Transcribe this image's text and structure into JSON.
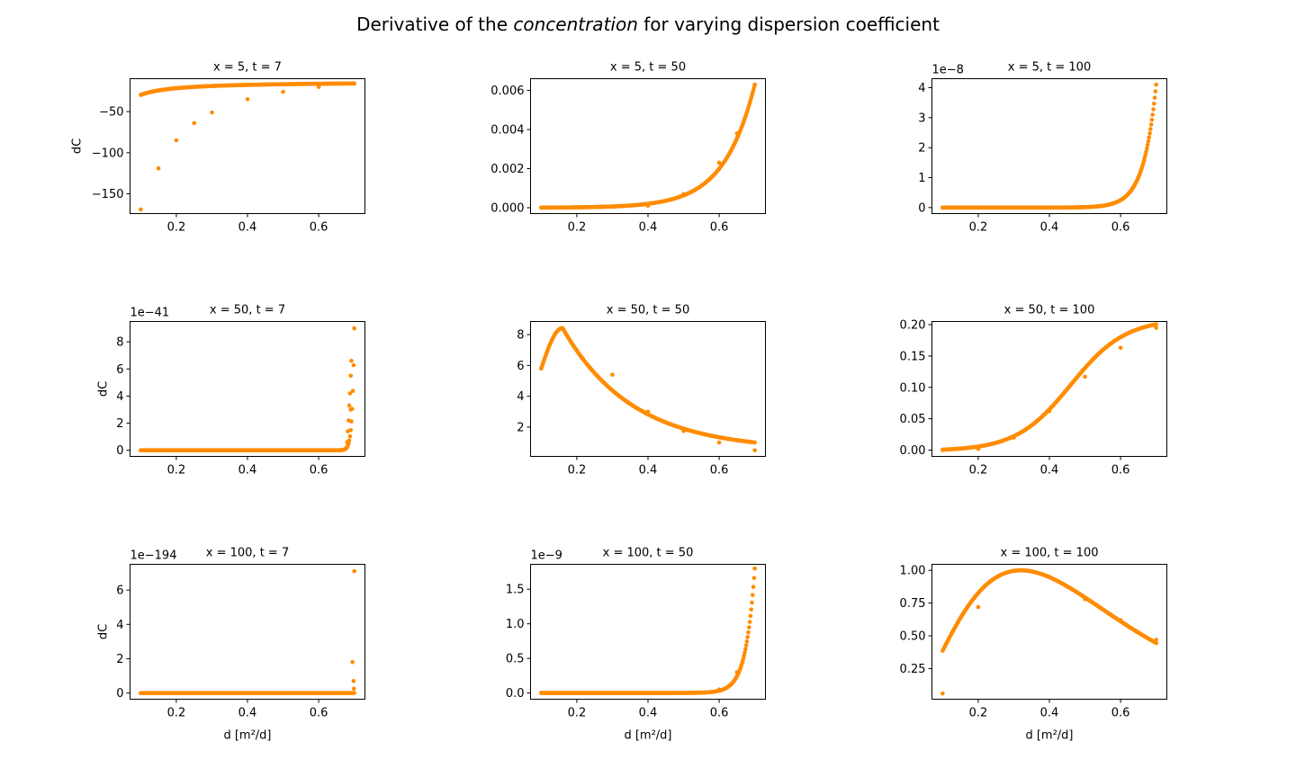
{
  "figure": {
    "title_prefix": "Derivative of the ",
    "title_italic": "concentration",
    "title_suffix": " for varying dispersion coefficient",
    "point_color": "#ff8c00"
  },
  "chart_data": [
    {
      "type": "scatter",
      "title": "x = 5, t = 7",
      "xlabel": "",
      "ylabel": "dC",
      "ylim": [
        -174,
        -10
      ],
      "xlim": [
        0.07,
        0.73
      ],
      "xticks": [
        0.2,
        0.4,
        0.6
      ],
      "yticks": [
        -150,
        -100,
        -50
      ],
      "ytick_labels": [
        "−150",
        "−100",
        "−50"
      ],
      "offset_text": "",
      "curve": "x=5,t=7",
      "series": [
        {
          "x": [
            0.1,
            0.15,
            0.2,
            0.25,
            0.3,
            0.4,
            0.5,
            0.6,
            0.7
          ],
          "y": [
            -169,
            -119,
            -85,
            -64,
            -51,
            -35,
            -26,
            -20,
            -16
          ]
        }
      ]
    },
    {
      "type": "scatter",
      "title": "x = 5, t = 50",
      "xlabel": "",
      "ylabel": "",
      "ylim": [
        -0.0003,
        0.0066
      ],
      "xlim": [
        0.07,
        0.73
      ],
      "xticks": [
        0.2,
        0.4,
        0.6
      ],
      "yticks": [
        0,
        0.002,
        0.004,
        0.006
      ],
      "ytick_labels": [
        "0.000",
        "0.002",
        "0.004",
        "0.006"
      ],
      "offset_text": "",
      "curve": "x=5,t=50",
      "series": [
        {
          "x": [
            0.1,
            0.4,
            0.5,
            0.6,
            0.65,
            0.7
          ],
          "y": [
            0,
            0.0001,
            0.0007,
            0.0023,
            0.0038,
            0.0063
          ]
        }
      ]
    },
    {
      "type": "scatter",
      "title": "x = 5, t = 100",
      "xlabel": "",
      "ylabel": "",
      "ylim": [
        -0.2,
        4.3
      ],
      "xlim": [
        0.07,
        0.73
      ],
      "xticks": [
        0.2,
        0.4,
        0.6
      ],
      "yticks": [
        0,
        1,
        2,
        3,
        4
      ],
      "ytick_labels": [
        "0",
        "1",
        "2",
        "3",
        "4"
      ],
      "offset_text": "1e−8",
      "curve": "x=5,t=100",
      "series": [
        {
          "x": [
            0.1,
            0.5,
            0.6,
            0.65,
            0.7
          ],
          "y": [
            0,
            0.01,
            0.25,
            1.0,
            4.1
          ]
        }
      ]
    },
    {
      "type": "scatter",
      "title": "x = 50, t = 7",
      "xlabel": "",
      "ylabel": "dC",
      "ylim": [
        -0.45,
        9.5
      ],
      "xlim": [
        0.07,
        0.73
      ],
      "xticks": [
        0.2,
        0.4,
        0.6
      ],
      "yticks": [
        0,
        2,
        4,
        6,
        8
      ],
      "ytick_labels": [
        "0",
        "2",
        "4",
        "6",
        "8"
      ],
      "offset_text": "1e−41",
      "curve": "x=50,t=7",
      "series": [
        {
          "x": [
            0.1,
            0.65,
            0.68,
            0.69,
            0.7
          ],
          "y": [
            0,
            0,
            0.6,
            3.0,
            9.0
          ]
        }
      ]
    },
    {
      "type": "scatter",
      "title": "x = 50, t = 50",
      "xlabel": "",
      "ylabel": "",
      "ylim": [
        0.1,
        8.85
      ],
      "xlim": [
        0.07,
        0.73
      ],
      "xticks": [
        0.2,
        0.4,
        0.6
      ],
      "yticks": [
        2,
        4,
        6,
        8
      ],
      "ytick_labels": [
        "2",
        "4",
        "6",
        "8"
      ],
      "offset_text": "",
      "curve": "x=50,t=50",
      "series": [
        {
          "x": [
            0.1,
            0.16,
            0.3,
            0.4,
            0.5,
            0.6,
            0.7
          ],
          "y": [
            5.8,
            8.4,
            5.4,
            3.0,
            1.75,
            1.0,
            0.5
          ]
        }
      ]
    },
    {
      "type": "scatter",
      "title": "x = 50, t = 100",
      "xlabel": "",
      "ylabel": "",
      "ylim": [
        -0.01,
        0.205
      ],
      "xlim": [
        0.07,
        0.73
      ],
      "xticks": [
        0.2,
        0.4,
        0.6
      ],
      "yticks": [
        0,
        0.05,
        0.1,
        0.15,
        0.2
      ],
      "ytick_labels": [
        "0.00",
        "0.05",
        "0.10",
        "0.15",
        "0.20"
      ],
      "offset_text": "",
      "curve": "x=50,t=100",
      "series": [
        {
          "x": [
            0.1,
            0.2,
            0.3,
            0.4,
            0.5,
            0.6,
            0.7
          ],
          "y": [
            0,
            0.002,
            0.02,
            0.062,
            0.117,
            0.163,
            0.195
          ]
        }
      ]
    },
    {
      "type": "scatter",
      "title": "x = 100, t = 7",
      "xlabel": "d [m²/d]",
      "ylabel": "dC",
      "ylim": [
        -0.36,
        7.5
      ],
      "xlim": [
        0.07,
        0.73
      ],
      "xticks": [
        0.2,
        0.4,
        0.6
      ],
      "yticks": [
        0,
        2,
        4,
        6
      ],
      "ytick_labels": [
        "0",
        "2",
        "4",
        "6"
      ],
      "offset_text": "1e−194",
      "curve": "x=100,t=7",
      "series": [
        {
          "x": [
            0.1,
            0.69,
            0.695,
            0.7
          ],
          "y": [
            0,
            0,
            1.8,
            7.1
          ]
        }
      ]
    },
    {
      "type": "scatter",
      "title": "x = 100, t = 50",
      "xlabel": "d [m²/d]",
      "ylabel": "",
      "ylim": [
        -0.09,
        1.86
      ],
      "xlim": [
        0.07,
        0.73
      ],
      "xticks": [
        0.2,
        0.4,
        0.6
      ],
      "yticks": [
        0,
        0.5,
        1.0,
        1.5
      ],
      "ytick_labels": [
        "0.0",
        "0.5",
        "1.0",
        "1.5"
      ],
      "offset_text": "1e−9",
      "curve": "x=100,t=50",
      "series": [
        {
          "x": [
            0.1,
            0.55,
            0.6,
            0.65,
            0.7
          ],
          "y": [
            0,
            0.005,
            0.05,
            0.3,
            1.8
          ]
        }
      ]
    },
    {
      "type": "scatter",
      "title": "x = 100, t = 100",
      "xlabel": "d [m²/d]",
      "ylabel": "",
      "ylim": [
        0.016,
        1.046
      ],
      "xlim": [
        0.07,
        0.73
      ],
      "xticks": [
        0.2,
        0.4,
        0.6
      ],
      "yticks": [
        0.25,
        0.5,
        0.75,
        1.0
      ],
      "ytick_labels": [
        "0.25",
        "0.50",
        "0.75",
        "1.00"
      ],
      "offset_text": "",
      "curve": "x=100,t=100",
      "series": [
        {
          "x": [
            0.1,
            0.2,
            0.32,
            0.4,
            0.5,
            0.6,
            0.7
          ],
          "y": [
            0.06,
            0.72,
            1.0,
            0.95,
            0.78,
            0.62,
            0.47
          ]
        }
      ]
    }
  ]
}
